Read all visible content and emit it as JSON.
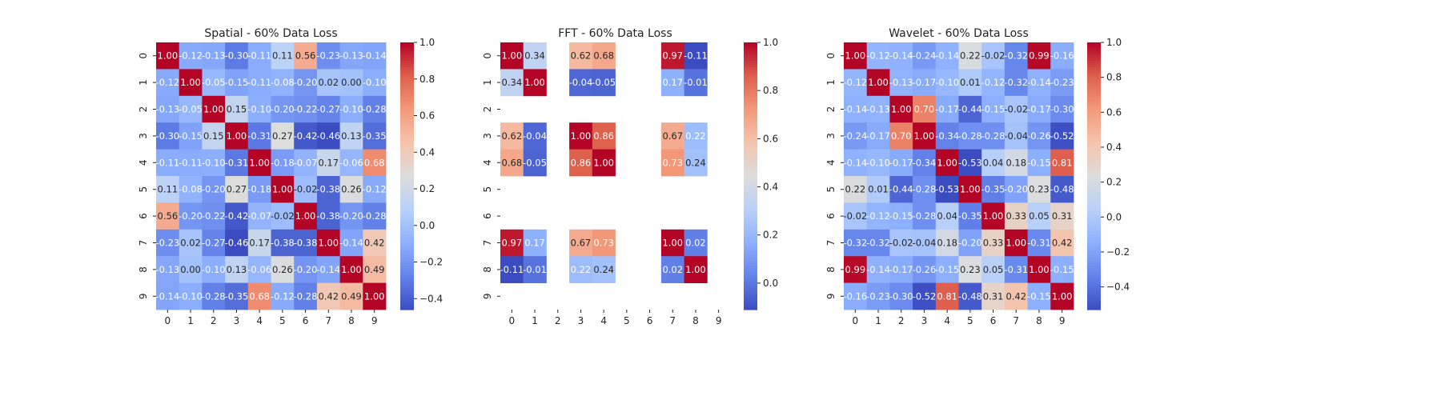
{
  "chart_data": [
    {
      "type": "heatmap",
      "title": "Spatial - 60% Data Loss",
      "x_tick_labels": [
        "0",
        "1",
        "2",
        "3",
        "4",
        "5",
        "6",
        "7",
        "8",
        "9"
      ],
      "y_tick_labels": [
        "0",
        "1",
        "2",
        "3",
        "4",
        "5",
        "6",
        "7",
        "8",
        "9"
      ],
      "matrix": [
        [
          1.0,
          -0.12,
          -0.13,
          -0.3,
          -0.11,
          0.11,
          0.56,
          -0.23,
          -0.13,
          -0.14
        ],
        [
          -0.12,
          1.0,
          -0.05,
          -0.15,
          -0.11,
          -0.08,
          -0.2,
          0.02,
          0.0,
          -0.1
        ],
        [
          -0.13,
          -0.05,
          1.0,
          0.15,
          -0.1,
          -0.2,
          -0.22,
          -0.27,
          -0.1,
          -0.28
        ],
        [
          -0.3,
          -0.15,
          0.15,
          1.0,
          -0.31,
          0.27,
          -0.42,
          -0.46,
          0.13,
          -0.35
        ],
        [
          -0.11,
          -0.11,
          -0.1,
          -0.31,
          1.0,
          -0.18,
          -0.07,
          0.17,
          -0.06,
          0.68
        ],
        [
          0.11,
          -0.08,
          -0.2,
          0.27,
          -0.18,
          1.0,
          -0.02,
          -0.38,
          0.26,
          -0.12
        ],
        [
          0.56,
          -0.2,
          -0.22,
          -0.42,
          -0.07,
          -0.02,
          1.0,
          -0.38,
          -0.2,
          -0.28
        ],
        [
          -0.23,
          0.02,
          -0.27,
          -0.46,
          0.17,
          -0.38,
          -0.38,
          1.0,
          -0.14,
          0.42
        ],
        [
          -0.13,
          0.0,
          -0.1,
          0.13,
          -0.06,
          0.26,
          -0.2,
          -0.14,
          1.0,
          0.49
        ],
        [
          -0.14,
          -0.1,
          -0.28,
          -0.35,
          0.68,
          -0.12,
          -0.28,
          0.42,
          0.49,
          1.0
        ]
      ],
      "colorbar": {
        "min": -0.46,
        "max": 1.0,
        "ticks": [
          -0.4,
          -0.2,
          0.0,
          0.2,
          0.4,
          0.6,
          0.8,
          1.0
        ],
        "tick_labels": [
          "−0.4",
          "−0.2",
          "0.0",
          "0.2",
          "0.4",
          "0.6",
          "0.8",
          "1.0"
        ]
      }
    },
    {
      "type": "heatmap",
      "title": "FFT - 60% Data Loss",
      "x_tick_labels": [
        "0",
        "1",
        "2",
        "3",
        "4",
        "5",
        "6",
        "7",
        "8",
        "9"
      ],
      "y_tick_labels": [
        "0",
        "1",
        "2",
        "3",
        "4",
        "5",
        "6",
        "7",
        "8",
        "9"
      ],
      "matrix": [
        [
          1.0,
          0.34,
          null,
          0.62,
          0.68,
          null,
          null,
          0.97,
          -0.11,
          null
        ],
        [
          0.34,
          1.0,
          null,
          -0.04,
          -0.05,
          null,
          null,
          0.17,
          -0.01,
          null
        ],
        [
          null,
          null,
          null,
          null,
          null,
          null,
          null,
          null,
          null,
          null
        ],
        [
          0.62,
          -0.04,
          null,
          1.0,
          0.86,
          null,
          null,
          0.67,
          0.22,
          null
        ],
        [
          0.68,
          -0.05,
          null,
          0.86,
          1.0,
          null,
          null,
          0.73,
          0.24,
          null
        ],
        [
          null,
          null,
          null,
          null,
          null,
          null,
          null,
          null,
          null,
          null
        ],
        [
          null,
          null,
          null,
          null,
          null,
          null,
          null,
          null,
          null,
          null
        ],
        [
          0.97,
          0.17,
          null,
          0.67,
          0.73,
          null,
          null,
          1.0,
          0.02,
          null
        ],
        [
          -0.11,
          -0.01,
          null,
          0.22,
          0.24,
          null,
          null,
          0.02,
          1.0,
          null
        ],
        [
          null,
          null,
          null,
          null,
          null,
          null,
          null,
          null,
          null,
          null
        ]
      ],
      "colorbar": {
        "min": -0.11,
        "max": 1.0,
        "ticks": [
          0.0,
          0.2,
          0.4,
          0.6,
          0.8,
          1.0
        ],
        "tick_labels": [
          "0.0",
          "0.2",
          "0.4",
          "0.6",
          "0.8",
          "1.0"
        ]
      }
    },
    {
      "type": "heatmap",
      "title": "Wavelet - 60% Data Loss",
      "x_tick_labels": [
        "0",
        "1",
        "2",
        "3",
        "4",
        "5",
        "6",
        "7",
        "8",
        "9"
      ],
      "y_tick_labels": [
        "0",
        "1",
        "2",
        "3",
        "4",
        "5",
        "6",
        "7",
        "8",
        "9"
      ],
      "matrix": [
        [
          1.0,
          -0.12,
          -0.14,
          -0.24,
          -0.14,
          0.22,
          -0.02,
          -0.32,
          0.99,
          -0.16
        ],
        [
          -0.12,
          1.0,
          -0.13,
          -0.17,
          -0.1,
          0.01,
          -0.12,
          -0.32,
          -0.14,
          -0.23
        ],
        [
          -0.14,
          -0.13,
          1.0,
          0.7,
          -0.17,
          -0.44,
          -0.15,
          -0.02,
          -0.17,
          -0.3
        ],
        [
          -0.24,
          -0.17,
          0.7,
          1.0,
          -0.34,
          -0.28,
          -0.28,
          -0.04,
          -0.26,
          -0.52
        ],
        [
          -0.14,
          -0.1,
          -0.17,
          -0.34,
          1.0,
          -0.53,
          0.04,
          0.18,
          -0.15,
          0.81
        ],
        [
          0.22,
          0.01,
          -0.44,
          -0.28,
          -0.53,
          1.0,
          -0.35,
          -0.2,
          0.23,
          -0.48
        ],
        [
          -0.02,
          -0.12,
          -0.15,
          -0.28,
          0.04,
          -0.35,
          1.0,
          0.33,
          0.05,
          0.31
        ],
        [
          -0.32,
          -0.32,
          -0.02,
          -0.04,
          0.18,
          -0.2,
          0.33,
          1.0,
          -0.31,
          0.42
        ],
        [
          0.99,
          -0.14,
          -0.17,
          -0.26,
          -0.15,
          0.23,
          0.05,
          -0.31,
          1.0,
          -0.15
        ],
        [
          -0.16,
          -0.23,
          -0.3,
          -0.52,
          0.81,
          -0.48,
          0.31,
          0.42,
          -0.15,
          1.0
        ]
      ],
      "colorbar": {
        "min": -0.53,
        "max": 1.0,
        "ticks": [
          -0.4,
          -0.2,
          0.0,
          0.2,
          0.4,
          0.6,
          0.8,
          1.0
        ],
        "tick_labels": [
          "−0.4",
          "−0.2",
          "0.0",
          "0.2",
          "0.4",
          "0.6",
          "0.8",
          "1.0"
        ]
      }
    }
  ],
  "colormap": {
    "name": "coolwarm",
    "stops": [
      "#3b4cc0",
      "#6282ea",
      "#8db0fe",
      "#b8d0f9",
      "#dcdddd",
      "#f5c4ac",
      "#f49a7b",
      "#de604d",
      "#b40426"
    ]
  }
}
